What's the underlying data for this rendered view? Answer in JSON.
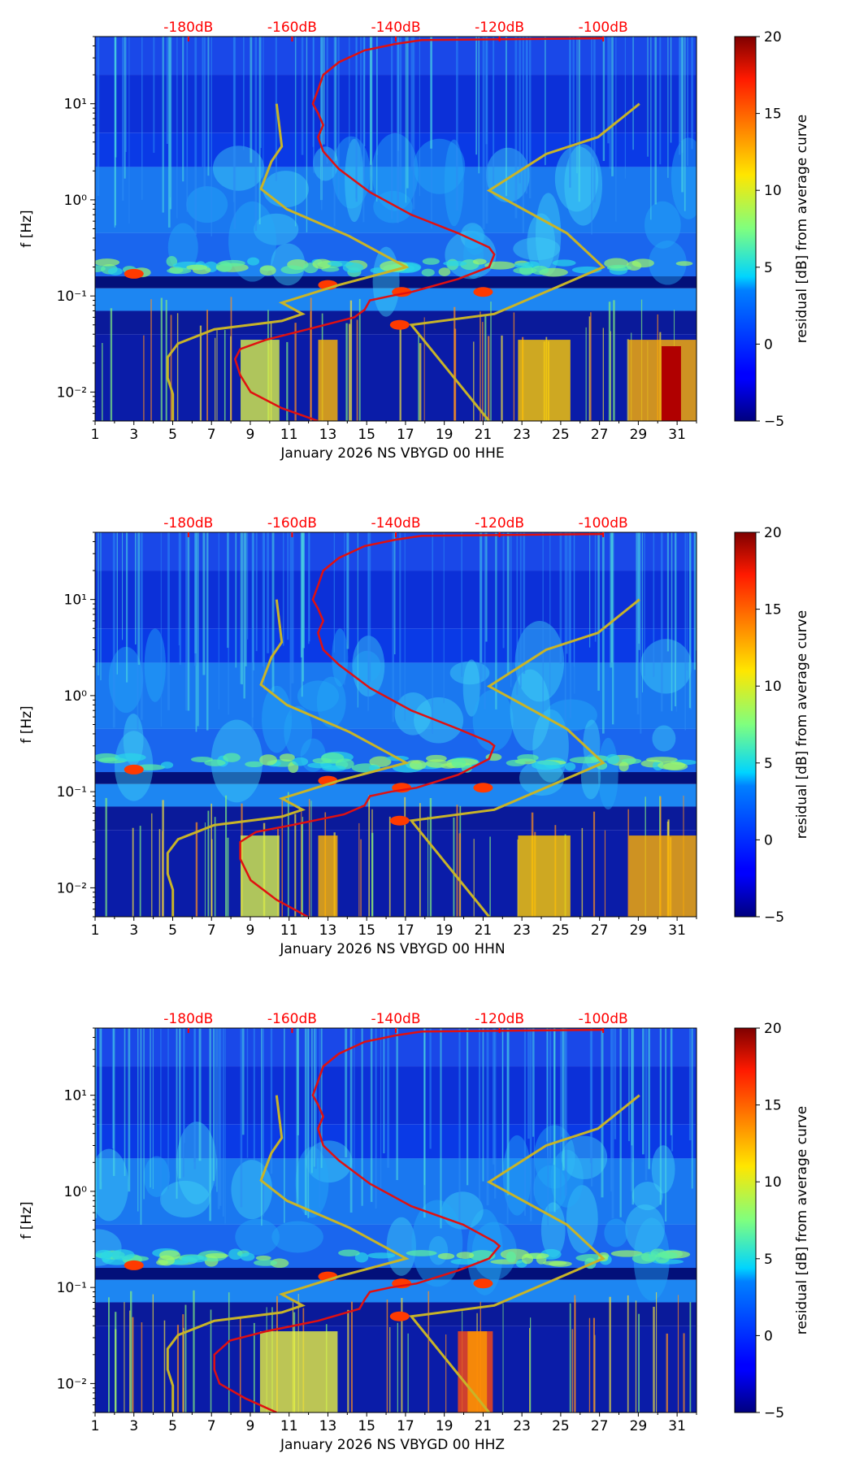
{
  "chart_data": [
    {
      "type": "heatmap",
      "title": "",
      "xlabel": "January 2026 NS VBYGD 00 HHE",
      "ylabel": "f [Hz]",
      "xlim": [
        1,
        32
      ],
      "ylim": [
        0.005,
        50
      ],
      "yscale": "log",
      "x_ticks": [
        1,
        3,
        5,
        7,
        9,
        11,
        13,
        15,
        17,
        19,
        21,
        23,
        25,
        27,
        29,
        31
      ],
      "y_ticks": [
        {
          "value": 0.01,
          "label": "10⁻²"
        },
        {
          "value": 0.1,
          "label": "10⁻¹"
        },
        {
          "value": 1,
          "label": "10⁰"
        },
        {
          "value": 10,
          "label": "10¹"
        }
      ],
      "top_axis": {
        "color": "#ff0000",
        "labels": [
          "-180dB",
          "-160dB",
          "-140dB",
          "-120dB",
          "-100dB"
        ],
        "values": [
          -180,
          -160,
          -140,
          -120,
          -100
        ]
      },
      "colorbar": {
        "label": "residual [dB] from average curve",
        "min": -5,
        "max": 20,
        "ticks": [
          -5,
          0,
          5,
          10,
          15,
          20
        ]
      },
      "red_curve": {
        "name": "average PSD",
        "units": "dB",
        "color": "#e01010",
        "points": [
          [
            -155,
            0.005
          ],
          [
            -162,
            0.0068
          ],
          [
            -168,
            0.01
          ],
          [
            -170,
            0.015
          ],
          [
            -171,
            0.022
          ],
          [
            -170,
            0.028
          ],
          [
            -165,
            0.035
          ],
          [
            -157,
            0.045
          ],
          [
            -148,
            0.06
          ],
          [
            -146,
            0.072
          ],
          [
            -145,
            0.09
          ],
          [
            -141,
            0.1
          ],
          [
            -137,
            0.11
          ],
          [
            -128,
            0.15
          ],
          [
            -122,
            0.2
          ],
          [
            -121,
            0.27
          ],
          [
            -122,
            0.32
          ],
          [
            -128,
            0.45
          ],
          [
            -137,
            0.7
          ],
          [
            -145,
            1.2
          ],
          [
            -151,
            2.1
          ],
          [
            -154,
            3.2
          ],
          [
            -155,
            4.5
          ],
          [
            -154,
            6
          ],
          [
            -155,
            8
          ],
          [
            -156,
            10
          ],
          [
            -155,
            14
          ],
          [
            -154,
            20
          ],
          [
            -151,
            27
          ],
          [
            -146,
            36
          ],
          [
            -140,
            42
          ],
          [
            -135,
            46
          ],
          [
            -100,
            48
          ]
        ]
      },
      "yellow_curve": {
        "name": "noise model",
        "units": "dB",
        "color": "#c8b428",
        "points": [
          [
            -183,
            0.005
          ],
          [
            -183,
            0.0095
          ],
          [
            -184,
            0.014
          ],
          [
            -184,
            0.023
          ],
          [
            -182,
            0.032
          ],
          [
            -175,
            0.045
          ],
          [
            -162,
            0.055
          ],
          [
            -158,
            0.065
          ],
          [
            -162,
            0.085
          ],
          [
            -151,
            0.13
          ],
          [
            -138,
            0.2
          ],
          [
            -149,
            0.42
          ],
          [
            -161,
            0.8
          ],
          [
            -166,
            1.3
          ],
          [
            -164,
            2.5
          ],
          [
            -162,
            3.6
          ],
          [
            -163,
            10
          ]
        ]
      },
      "yellow_curve_2": {
        "name": "noise model",
        "units": "dB",
        "color": "#c8b428",
        "points": [
          [
            -122,
            0.005
          ],
          [
            -137,
            0.05
          ],
          [
            -121,
            0.065
          ],
          [
            -108,
            0.13
          ],
          [
            -100,
            0.2
          ],
          [
            -107,
            0.45
          ],
          [
            -122,
            1.25
          ],
          [
            -111,
            3
          ],
          [
            -101,
            4.5
          ],
          [
            -93,
            10
          ]
        ]
      }
    },
    {
      "type": "heatmap",
      "title": "",
      "xlabel": "January 2026 NS VBYGD 00 HHN",
      "ylabel": "f [Hz]",
      "xlim": [
        1,
        32
      ],
      "ylim": [
        0.005,
        50
      ],
      "yscale": "log",
      "x_ticks": [
        1,
        3,
        5,
        7,
        9,
        11,
        13,
        15,
        17,
        19,
        21,
        23,
        25,
        27,
        29,
        31
      ],
      "y_ticks": [
        {
          "value": 0.01,
          "label": "10⁻²"
        },
        {
          "value": 0.1,
          "label": "10⁻¹"
        },
        {
          "value": 1,
          "label": "10⁰"
        },
        {
          "value": 10,
          "label": "10¹"
        }
      ],
      "top_axis": {
        "color": "#ff0000",
        "labels": [
          "-180dB",
          "-160dB",
          "-140dB",
          "-120dB",
          "-100dB"
        ],
        "values": [
          -180,
          -160,
          -140,
          -120,
          -100
        ]
      },
      "colorbar": {
        "label": "residual [dB] from average curve",
        "min": -5,
        "max": 20,
        "ticks": [
          -5,
          0,
          5,
          10,
          15,
          20
        ]
      },
      "red_curve": {
        "name": "average PSD",
        "units": "dB",
        "color": "#e01010",
        "points": [
          [
            -157,
            0.005
          ],
          [
            -163,
            0.0075
          ],
          [
            -168,
            0.012
          ],
          [
            -170,
            0.02
          ],
          [
            -170,
            0.03
          ],
          [
            -167,
            0.038
          ],
          [
            -160,
            0.045
          ],
          [
            -150,
            0.058
          ],
          [
            -146,
            0.072
          ],
          [
            -145,
            0.09
          ],
          [
            -141,
            0.1
          ],
          [
            -136,
            0.11
          ],
          [
            -128,
            0.15
          ],
          [
            -122,
            0.22
          ],
          [
            -121,
            0.3
          ],
          [
            -122,
            0.33
          ],
          [
            -128,
            0.45
          ],
          [
            -137,
            0.7
          ],
          [
            -145,
            1.2
          ],
          [
            -151,
            2.1
          ],
          [
            -154,
            3
          ],
          [
            -155,
            4.5
          ],
          [
            -154,
            6
          ],
          [
            -155,
            8
          ],
          [
            -156,
            10
          ],
          [
            -155,
            14
          ],
          [
            -154,
            20
          ],
          [
            -151,
            27
          ],
          [
            -146,
            36
          ],
          [
            -140,
            42
          ],
          [
            -135,
            46
          ],
          [
            -100,
            48
          ]
        ]
      },
      "yellow_curve": {
        "name": "noise model",
        "units": "dB",
        "color": "#c8b428",
        "points": [
          [
            -183,
            0.005
          ],
          [
            -183,
            0.0095
          ],
          [
            -184,
            0.014
          ],
          [
            -184,
            0.023
          ],
          [
            -182,
            0.032
          ],
          [
            -175,
            0.045
          ],
          [
            -162,
            0.055
          ],
          [
            -158,
            0.065
          ],
          [
            -162,
            0.085
          ],
          [
            -151,
            0.13
          ],
          [
            -138,
            0.2
          ],
          [
            -149,
            0.42
          ],
          [
            -161,
            0.8
          ],
          [
            -166,
            1.3
          ],
          [
            -164,
            2.5
          ],
          [
            -162,
            3.6
          ],
          [
            -163,
            10
          ]
        ]
      },
      "yellow_curve_2": {
        "name": "noise model",
        "units": "dB",
        "color": "#c8b428",
        "points": [
          [
            -122,
            0.005
          ],
          [
            -137,
            0.05
          ],
          [
            -121,
            0.065
          ],
          [
            -108,
            0.13
          ],
          [
            -100,
            0.2
          ],
          [
            -107,
            0.45
          ],
          [
            -122,
            1.25
          ],
          [
            -111,
            3
          ],
          [
            -101,
            4.5
          ],
          [
            -93,
            10
          ]
        ]
      }
    },
    {
      "type": "heatmap",
      "title": "",
      "xlabel": "January 2026 NS VBYGD 00 HHZ",
      "ylabel": "f [Hz]",
      "xlim": [
        1,
        32
      ],
      "ylim": [
        0.005,
        50
      ],
      "yscale": "log",
      "x_ticks": [
        1,
        3,
        5,
        7,
        9,
        11,
        13,
        15,
        17,
        19,
        21,
        23,
        25,
        27,
        29,
        31
      ],
      "y_ticks": [
        {
          "value": 0.01,
          "label": "10⁻²"
        },
        {
          "value": 0.1,
          "label": "10⁻¹"
        },
        {
          "value": 1,
          "label": "10⁰"
        },
        {
          "value": 10,
          "label": "10¹"
        }
      ],
      "top_axis": {
        "color": "#ff0000",
        "labels": [
          "-180dB",
          "-160dB",
          "-140dB",
          "-120dB",
          "-100dB"
        ],
        "values": [
          -180,
          -160,
          -140,
          -120,
          -100
        ]
      },
      "colorbar": {
        "label": "residual [dB] from average curve",
        "min": -5,
        "max": 20,
        "ticks": [
          -5,
          0,
          5,
          10,
          15,
          20
        ]
      },
      "red_curve": {
        "name": "average PSD",
        "units": "dB",
        "color": "#e01010",
        "points": [
          [
            -163,
            0.005
          ],
          [
            -169,
            0.007
          ],
          [
            -174,
            0.01
          ],
          [
            -175,
            0.014
          ],
          [
            -175,
            0.02
          ],
          [
            -172,
            0.028
          ],
          [
            -165,
            0.035
          ],
          [
            -155,
            0.045
          ],
          [
            -147,
            0.06
          ],
          [
            -146,
            0.075
          ],
          [
            -145,
            0.09
          ],
          [
            -141,
            0.1
          ],
          [
            -136,
            0.11
          ],
          [
            -128,
            0.15
          ],
          [
            -122,
            0.2
          ],
          [
            -120,
            0.27
          ],
          [
            -121,
            0.3
          ],
          [
            -127,
            0.45
          ],
          [
            -137,
            0.7
          ],
          [
            -145,
            1.2
          ],
          [
            -151,
            2.1
          ],
          [
            -154,
            3
          ],
          [
            -155,
            4.5
          ],
          [
            -154,
            6
          ],
          [
            -155,
            8
          ],
          [
            -156,
            10
          ],
          [
            -155,
            14
          ],
          [
            -154,
            20
          ],
          [
            -151,
            27
          ],
          [
            -146,
            36
          ],
          [
            -140,
            42
          ],
          [
            -135,
            46
          ],
          [
            -100,
            48
          ]
        ]
      },
      "yellow_curve": {
        "name": "noise model",
        "units": "dB",
        "color": "#c8b428",
        "points": [
          [
            -183,
            0.005
          ],
          [
            -183,
            0.0095
          ],
          [
            -184,
            0.014
          ],
          [
            -184,
            0.023
          ],
          [
            -182,
            0.032
          ],
          [
            -175,
            0.045
          ],
          [
            -162,
            0.055
          ],
          [
            -158,
            0.065
          ],
          [
            -162,
            0.085
          ],
          [
            -151,
            0.13
          ],
          [
            -138,
            0.2
          ],
          [
            -149,
            0.42
          ],
          [
            -161,
            0.8
          ],
          [
            -166,
            1.3
          ],
          [
            -164,
            2.5
          ],
          [
            -162,
            3.6
          ],
          [
            -163,
            10
          ]
        ]
      },
      "yellow_curve_2": {
        "name": "noise model",
        "units": "dB",
        "color": "#c8b428",
        "points": [
          [
            -122,
            0.005
          ],
          [
            -137,
            0.05
          ],
          [
            -121,
            0.065
          ],
          [
            -108,
            0.13
          ],
          [
            -100,
            0.2
          ],
          [
            -107,
            0.45
          ],
          [
            -122,
            1.25
          ],
          [
            -111,
            3
          ],
          [
            -101,
            4.5
          ],
          [
            -93,
            10
          ]
        ]
      }
    }
  ]
}
